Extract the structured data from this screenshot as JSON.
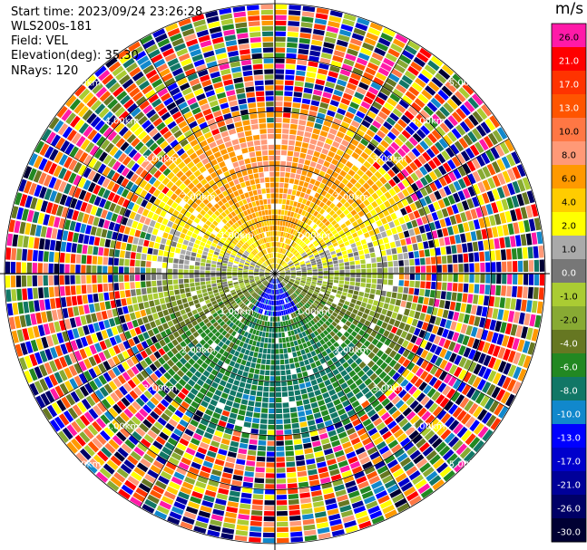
{
  "header": {
    "start_time": "Start time: 2023/09/24 23:26:28",
    "instrument": "WLS200s-181",
    "field": "Field: VEL",
    "elevation": "Elevation(deg): 35.30",
    "nrays": "NRays: 120"
  },
  "chart_data": {
    "type": "heatmap",
    "projection": "polar-ppi",
    "field": "VEL",
    "unit": "m/s",
    "nrays": 120,
    "elevation_deg": 35.3,
    "range_rings_km": [
      1.0,
      2.0,
      3.0,
      4.0,
      5.0
    ],
    "ring_labels": [
      "1.00km",
      "2.00km",
      "3.00km",
      "4.00km",
      "5.00km"
    ],
    "max_range_km": 5.0,
    "clean_range_km": 2.9,
    "velocity_pattern": {
      "north_sector_mps": 8,
      "east_west_mps": 0,
      "south_sector_mps": -7,
      "near_center_south_mps": -11
    },
    "colorbar": {
      "labels": [
        "26.0",
        "21.0",
        "17.0",
        "13.0",
        "10.0",
        "8.0",
        "6.0",
        "4.0",
        "2.0",
        "1.0",
        "0.0",
        "-1.0",
        "-2.0",
        "-4.0",
        "-6.0",
        "-8.0",
        "-10.0",
        "-13.0",
        "-17.0",
        "-21.0",
        "-26.0",
        "-30.0"
      ],
      "colors": [
        "#ff1aa8",
        "#ff0000",
        "#ff3300",
        "#ff5500",
        "#ff7744",
        "#ff9977",
        "#ff9900",
        "#ffcc00",
        "#ffff00",
        "#aaaaaa",
        "#777777",
        "#aacc33",
        "#88aa33",
        "#667722",
        "#228822",
        "#117766",
        "#1188cc",
        "#0000ff",
        "#0000cc",
        "#000099",
        "#000066",
        "#000033"
      ]
    }
  }
}
